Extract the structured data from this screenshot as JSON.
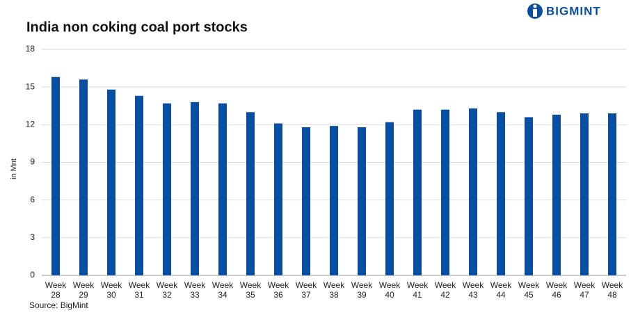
{
  "logo": "BIGMINT",
  "chart_data": {
    "type": "bar",
    "title": "India non coking coal port stocks",
    "y_label": "in Mnt",
    "source": "Source: BigMint",
    "categories": [
      "Week 28",
      "Week 29",
      "Week 30",
      "Week 31",
      "Week 32",
      "Week 33",
      "Week 34",
      "Week 35",
      "Week 36",
      "Week 37",
      "Week 38",
      "Week 39",
      "Week 40",
      "Week 41",
      "Week 42",
      "Week 43",
      "Week 44",
      "Week 45",
      "Week 46",
      "Week 47",
      "Week 48"
    ],
    "values": [
      15.8,
      15.6,
      14.8,
      14.3,
      13.7,
      13.8,
      13.7,
      13.0,
      12.1,
      11.8,
      11.9,
      11.8,
      12.2,
      13.2,
      13.2,
      13.3,
      13.0,
      12.6,
      12.8,
      12.9,
      12.9
    ],
    "color": "#0a4ea2",
    "ylim": [
      0,
      18
    ],
    "yticks": [
      0,
      3,
      6,
      9,
      12,
      15,
      18
    ],
    "grid": true
  }
}
